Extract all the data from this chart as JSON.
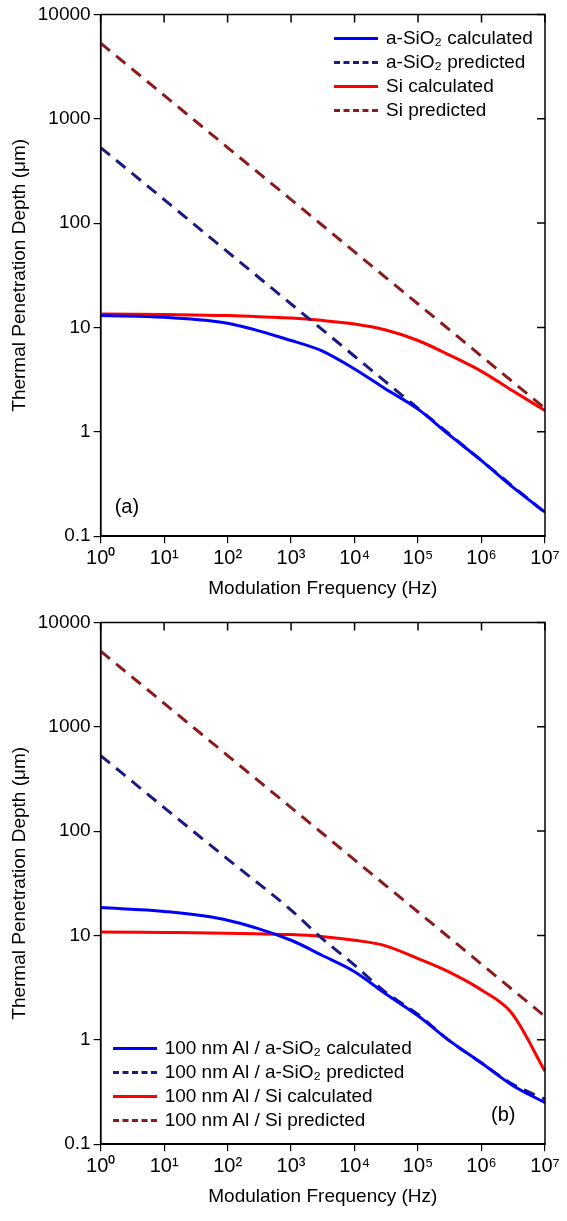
{
  "chart_data": [
    {
      "type": "line",
      "xlabel": "Modulation Frequency (Hz)",
      "ylabel": "Thermal Penetration Depth (μm)",
      "log": "xy",
      "legend": "top right",
      "grid": false,
      "x": [
        1,
        10,
        100,
        1000,
        3000,
        10000,
        30000,
        100000,
        300000,
        1000000,
        3000000,
        10000000
      ],
      "xlim": [
        1,
        10000000
      ],
      "xticks": [
        {
          "value": 1,
          "label": "10⁰"
        },
        {
          "value": 10,
          "label": "10¹"
        },
        {
          "value": 100,
          "label": "10²"
        },
        {
          "value": 1000,
          "label": "10³"
        },
        {
          "value": 10000,
          "label": "10⁴"
        },
        {
          "value": 100000,
          "label": "10⁵"
        },
        {
          "value": 1000000,
          "label": "10⁶"
        },
        {
          "value": 10000000,
          "label": "10⁷"
        }
      ],
      "ylim": [
        0.1,
        10000
      ],
      "yticks": [
        0.1,
        1,
        10,
        100,
        1000,
        10000
      ],
      "annotations": [
        "(a)"
      ],
      "series": [
        {
          "name": "a-SiO₂ calculated",
          "color": "#0000ff",
          "line_style": "solid",
          "values": [
            13,
            12.5,
            11,
            7.5,
            6,
            4,
            2.6,
            1.65,
            0.95,
            0.53,
            0.3,
            0.17
          ]
        },
        {
          "name": "a-SiO₂ predicted",
          "color": "#1a1a80",
          "line_style": "dashed",
          "values": [
            530,
            168,
            53,
            16.8,
            9.7,
            5.3,
            3.06,
            1.68,
            0.97,
            0.53,
            0.306,
            0.168
          ]
        },
        {
          "name": "Si calculated",
          "color": "#ff0000",
          "line_style": "solid",
          "values": [
            13.5,
            13.3,
            13,
            12.3,
            11.7,
            10.8,
            9.5,
            7.5,
            5.5,
            3.8,
            2.5,
            1.6
          ]
        },
        {
          "name": "Si predicted",
          "color": "#8b1a1a",
          "line_style": "dashed",
          "values": [
            5300,
            1676,
            530,
            168,
            97,
            53,
            30.6,
            16.8,
            9.7,
            5.3,
            3.06,
            1.68
          ]
        }
      ]
    },
    {
      "type": "line",
      "xlabel": "Modulation Frequency (Hz)",
      "ylabel": "Thermal Penetration Depth (μm)",
      "log": "xy",
      "legend": "bottom left",
      "grid": false,
      "x": [
        1,
        10,
        100,
        1000,
        3000,
        10000,
        30000,
        100000,
        300000,
        1000000,
        3000000,
        10000000
      ],
      "xlim": [
        1,
        10000000
      ],
      "xticks": [
        {
          "value": 1,
          "label": "10⁰"
        },
        {
          "value": 10,
          "label": "10¹"
        },
        {
          "value": 100,
          "label": "10²"
        },
        {
          "value": 1000,
          "label": "10³"
        },
        {
          "value": 10000,
          "label": "10⁴"
        },
        {
          "value": 100000,
          "label": "10⁵"
        },
        {
          "value": 1000000,
          "label": "10⁶"
        },
        {
          "value": 10000000,
          "label": "10⁷"
        }
      ],
      "ylim": [
        0.1,
        10000
      ],
      "yticks": [
        0.1,
        1,
        10,
        100,
        1000,
        10000
      ],
      "annotations": [
        "(b)"
      ],
      "series": [
        {
          "name": "100 nm Al / a-SiO₂ calculated",
          "color": "#0000ff",
          "line_style": "solid",
          "values": [
            18.5,
            17,
            14,
            9,
            6.5,
            4.5,
            2.8,
            1.7,
            1.0,
            0.6,
            0.37,
            0.25
          ]
        },
        {
          "name": "100 nm Al / a-SiO₂ predicted",
          "color": "#1a1a80",
          "line_style": "dashed",
          "values": [
            530,
            168,
            54,
            17.5,
            9.5,
            5.2,
            2.9,
            1.75,
            1.0,
            0.6,
            0.38,
            0.27
          ]
        },
        {
          "name": "100 nm Al / Si calculated",
          "color": "#ff0000",
          "line_style": "solid",
          "values": [
            10.8,
            10.7,
            10.5,
            10.2,
            9.8,
            9,
            8,
            6,
            4.5,
            3,
            1.8,
            0.5
          ]
        },
        {
          "name": "100 nm Al / Si predicted",
          "color": "#8b1a1a",
          "line_style": "dashed",
          "values": [
            5300,
            1676,
            530,
            168,
            97,
            53,
            30.6,
            16.8,
            9.7,
            5.3,
            3.06,
            1.68
          ]
        }
      ]
    }
  ]
}
